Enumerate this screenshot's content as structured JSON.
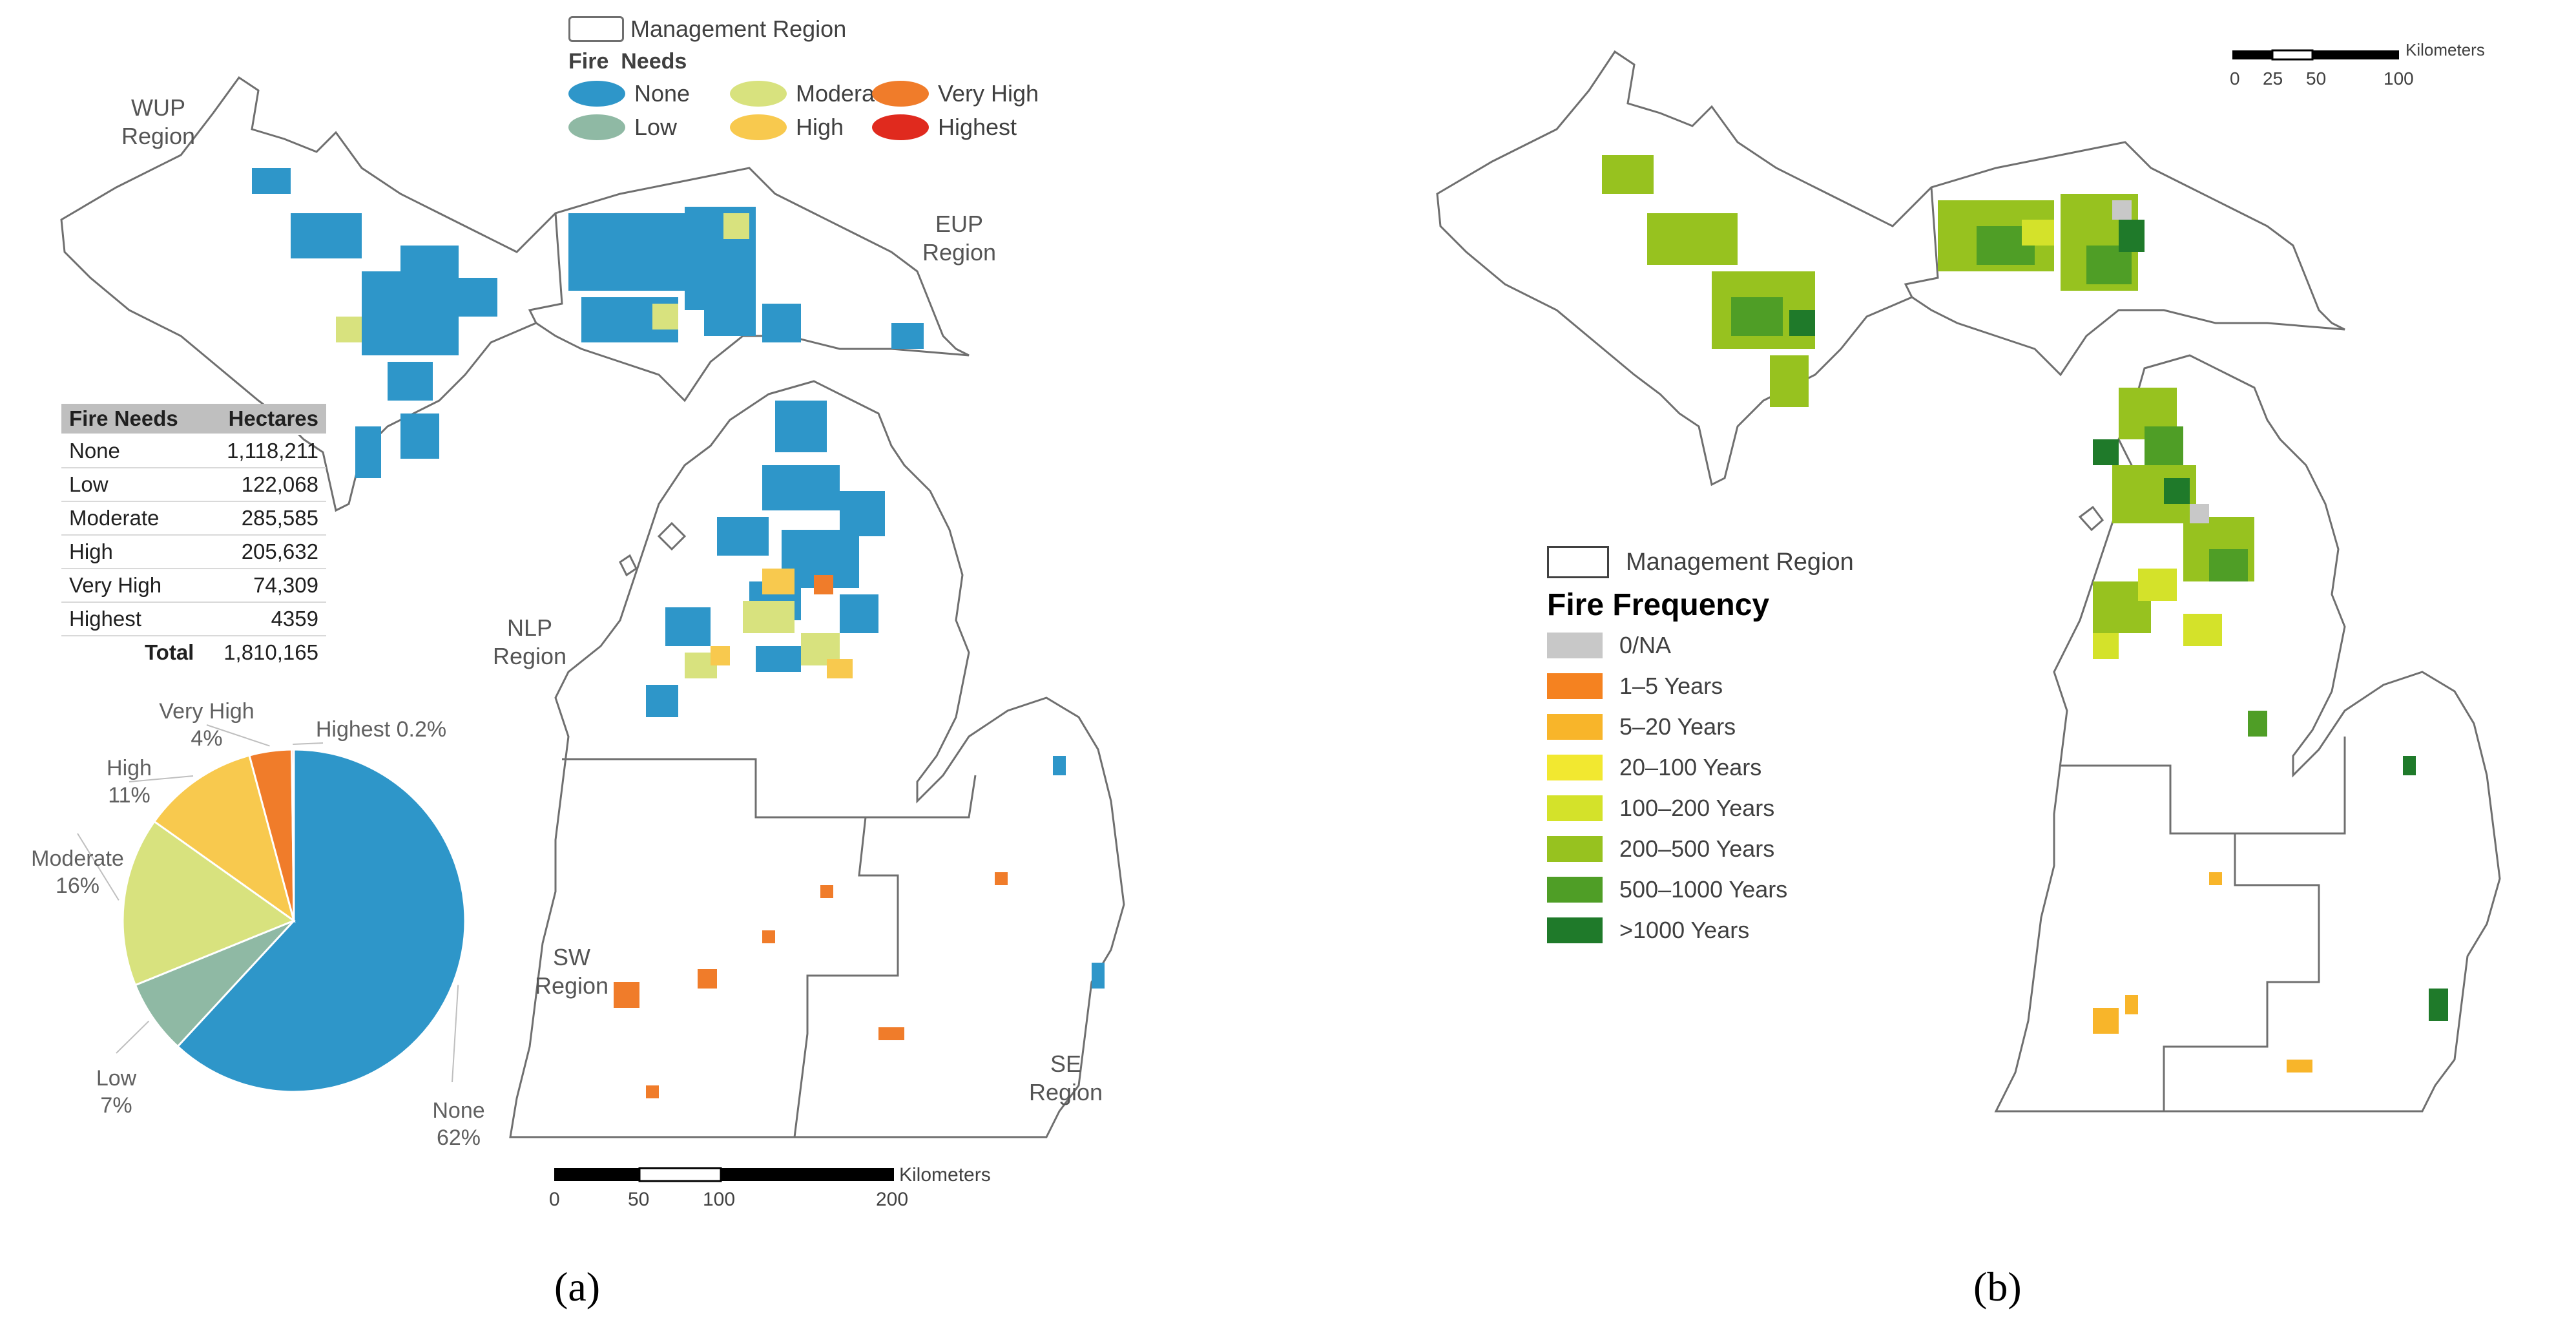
{
  "panel_a": {
    "legend": {
      "boundary_label": "Management Region",
      "title": "Fire  Needs",
      "classes": [
        {
          "label": "None",
          "color": "#2e96c9"
        },
        {
          "label": "Moderate",
          "color": "#d8e27e"
        },
        {
          "label": "Very High",
          "color": "#f07c2a"
        },
        {
          "label": "Low",
          "color": "#8fb9a4"
        },
        {
          "label": "High",
          "color": "#f8c94e"
        },
        {
          "label": "Highest",
          "color": "#e02a1e"
        }
      ]
    },
    "regions": {
      "wup": "WUP\nRegion",
      "eup": "EUP\nRegion",
      "nlp": "NLP\nRegion",
      "sw": "SW\nRegion",
      "se": "SE\nRegion"
    },
    "table": {
      "headers": [
        "Fire Needs",
        "Hectares"
      ],
      "rows": [
        [
          "None",
          "1,118,211"
        ],
        [
          "Low",
          "122,068"
        ],
        [
          "Moderate",
          "285,585"
        ],
        [
          "High",
          "205,632"
        ],
        [
          "Very High",
          "74,309"
        ],
        [
          "Highest",
          "4359"
        ]
      ],
      "total_label": "Total",
      "total_value": "1,810,165"
    },
    "scale": {
      "unit": "Kilometers",
      "ticks": [
        "0",
        "50",
        "100",
        "200"
      ]
    },
    "caption": "(a)"
  },
  "chart_data": {
    "type": "pie",
    "categories": [
      "None",
      "Low",
      "Moderate",
      "High",
      "Very High",
      "Highest"
    ],
    "values": [
      62,
      7,
      16,
      11,
      4,
      0.2
    ],
    "colors": [
      "#2e96c9",
      "#8fb9a4",
      "#d8e27e",
      "#f8c94e",
      "#f07c2a",
      "#e02a1e"
    ],
    "labels": [
      "None\n62%",
      "Low\n7%",
      "Moderate\n16%",
      "High\n11%",
      "Very High\n4%",
      "Highest 0.2%"
    ]
  },
  "panel_b": {
    "scale": {
      "unit": "Kilometers",
      "ticks": [
        "0",
        "25",
        "50",
        "100"
      ]
    },
    "legend": {
      "boundary_label": "Management Region",
      "title": "Fire Frequency",
      "classes": [
        {
          "label": "0/NA",
          "color": "#c8c8c8"
        },
        {
          "label": "1–5 Years",
          "color": "#f58220"
        },
        {
          "label": "5–20 Years",
          "color": "#f8b52a"
        },
        {
          "label": "20–100 Years",
          "color": "#f2e830"
        },
        {
          "label": "100–200 Years",
          "color": "#d4e22a"
        },
        {
          "label": "200–500 Years",
          "color": "#97c21f"
        },
        {
          "label": "500–1000 Years",
          "color": "#4f9e26"
        },
        {
          "label": ">1000 Years",
          "color": "#1f7a2a"
        }
      ]
    },
    "caption": "(b)"
  }
}
